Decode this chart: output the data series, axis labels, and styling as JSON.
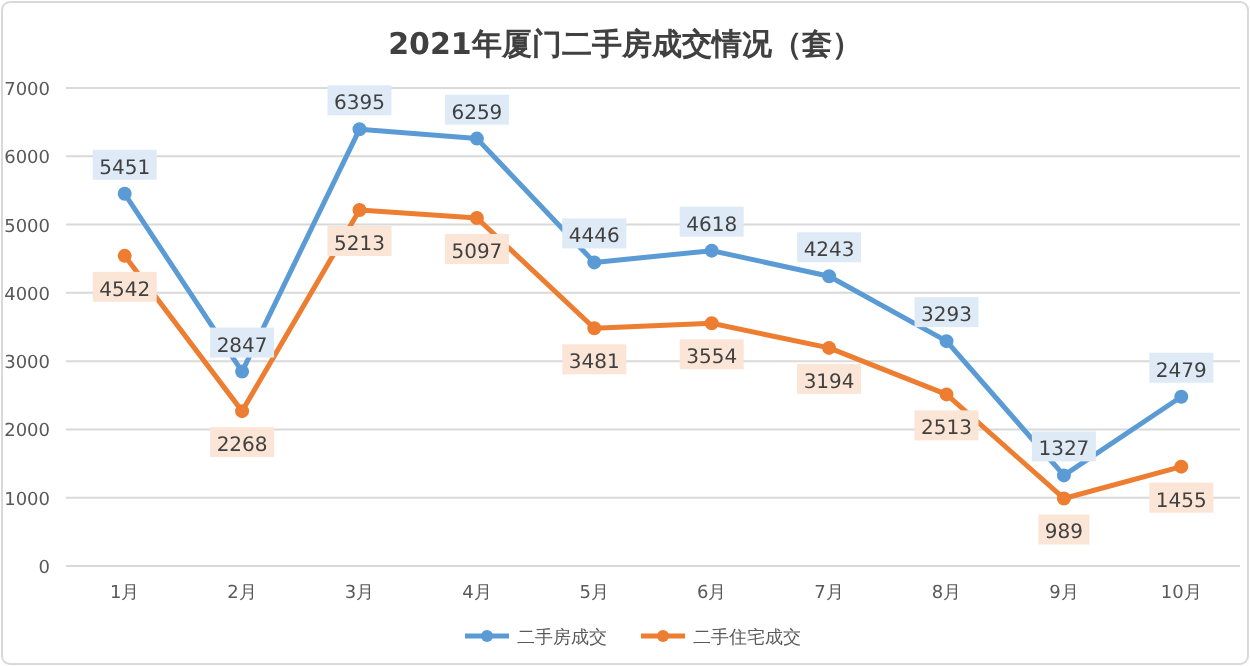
{
  "chart_data": {
    "type": "line",
    "title": "2021年厦门二手房成交情况（套）",
    "categories": [
      "1月",
      "2月",
      "3月",
      "4月",
      "5月",
      "6月",
      "7月",
      "8月",
      "9月",
      "10月"
    ],
    "series": [
      {
        "name": "二手房成交",
        "color": "#5b9bd5",
        "values": [
          5451,
          2847,
          6395,
          6259,
          4446,
          4618,
          4243,
          3293,
          1327,
          2479
        ]
      },
      {
        "name": "二手住宅成交",
        "color": "#ed7d31",
        "values": [
          4542,
          2268,
          5213,
          5097,
          3481,
          3554,
          3194,
          2513,
          989,
          1455
        ]
      }
    ],
    "ylim": [
      0,
      7000
    ],
    "yticks": [
      0,
      1000,
      2000,
      3000,
      4000,
      5000,
      6000,
      7000
    ],
    "grid": "y",
    "legend": "bottom",
    "marker": "circle",
    "line_style": "solid",
    "data_labels": true
  }
}
